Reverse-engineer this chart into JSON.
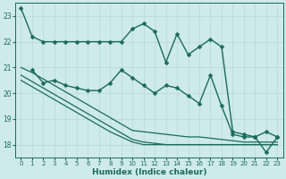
{
  "xlabel": "Humidex (Indice chaleur)",
  "ylabel": "",
  "bg_color": "#ceeaea",
  "grid_color": "#b8d8d8",
  "line_color": "#1a6b5a",
  "xlim": [
    -0.5,
    23.5
  ],
  "ylim": [
    17.5,
    23.5
  ],
  "yticks": [
    18,
    19,
    20,
    21,
    22,
    23
  ],
  "xticks": [
    0,
    1,
    2,
    3,
    4,
    5,
    6,
    7,
    8,
    9,
    10,
    11,
    12,
    13,
    14,
    15,
    16,
    17,
    18,
    19,
    20,
    21,
    22,
    23
  ],
  "series": [
    {
      "x": [
        0,
        1,
        2,
        3,
        4,
        5,
        6,
        7,
        8,
        9,
        10,
        11,
        12,
        13,
        14,
        15,
        16,
        17,
        18,
        19,
        20,
        21,
        22,
        23
      ],
      "y": [
        23.3,
        22.2,
        22.0,
        22.0,
        22.0,
        22.0,
        22.0,
        22.0,
        22.0,
        22.0,
        22.5,
        22.7,
        22.4,
        21.2,
        22.3,
        21.5,
        21.8,
        22.1,
        21.8,
        18.5,
        18.4,
        18.3,
        18.5,
        18.3
      ],
      "marker": "D",
      "markersize": 2.5,
      "linewidth": 1.0
    },
    {
      "x": [
        1,
        2,
        3,
        4,
        5,
        6,
        7,
        8,
        9,
        10,
        11,
        12,
        13,
        14,
        15,
        16,
        17,
        18,
        19,
        20,
        21,
        22,
        23
      ],
      "y": [
        20.9,
        20.4,
        20.5,
        20.3,
        20.2,
        20.1,
        20.1,
        20.4,
        20.9,
        20.6,
        20.3,
        20.0,
        20.3,
        20.2,
        19.9,
        19.6,
        20.7,
        19.5,
        18.4,
        18.3,
        18.3,
        17.7,
        18.3
      ],
      "marker": "D",
      "markersize": 2.5,
      "linewidth": 1.0
    },
    {
      "x": [
        0,
        1,
        2,
        3,
        4,
        5,
        6,
        7,
        8,
        9,
        10,
        11,
        12,
        13,
        14,
        15,
        16,
        17,
        18,
        19,
        20,
        21,
        22,
        23
      ],
      "y": [
        21.0,
        20.8,
        20.55,
        20.3,
        20.05,
        19.8,
        19.55,
        19.3,
        19.05,
        18.8,
        18.55,
        18.5,
        18.45,
        18.4,
        18.35,
        18.3,
        18.3,
        18.25,
        18.2,
        18.15,
        18.1,
        18.1,
        18.1,
        18.1
      ],
      "marker": null,
      "markersize": 0,
      "linewidth": 0.9
    },
    {
      "x": [
        0,
        1,
        2,
        3,
        4,
        5,
        6,
        7,
        8,
        9,
        10,
        11,
        12,
        13,
        14,
        15,
        16,
        17,
        18,
        19,
        20,
        21,
        22,
        23
      ],
      "y": [
        20.7,
        20.45,
        20.2,
        19.95,
        19.7,
        19.45,
        19.2,
        18.95,
        18.7,
        18.45,
        18.2,
        18.1,
        18.05,
        18.0,
        18.0,
        18.0,
        18.0,
        18.0,
        18.0,
        18.0,
        18.0,
        18.0,
        18.0,
        18.0
      ],
      "marker": null,
      "markersize": 0,
      "linewidth": 0.9
    },
    {
      "x": [
        0,
        1,
        2,
        3,
        4,
        5,
        6,
        7,
        8,
        9,
        10,
        11,
        12,
        13,
        14,
        15,
        16,
        17,
        18,
        19,
        20,
        21,
        22,
        23
      ],
      "y": [
        20.5,
        20.25,
        20.0,
        19.75,
        19.5,
        19.25,
        19.0,
        18.75,
        18.5,
        18.3,
        18.1,
        18.0,
        18.0,
        18.0,
        18.0,
        18.0,
        18.0,
        18.0,
        18.0,
        18.0,
        18.0,
        18.0,
        18.0,
        18.0
      ],
      "marker": null,
      "markersize": 0,
      "linewidth": 0.9
    }
  ]
}
